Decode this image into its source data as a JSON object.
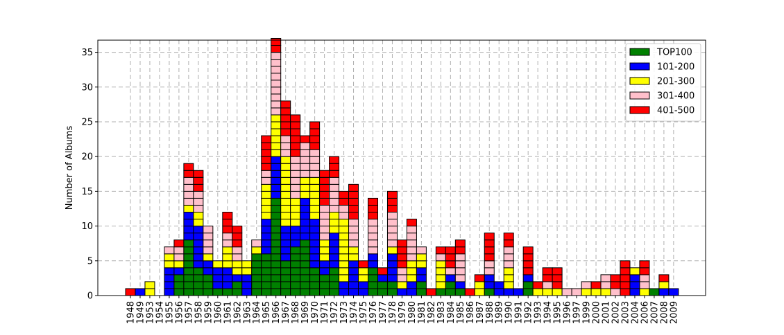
{
  "chart_data": {
    "type": "bar",
    "stacked": true,
    "title": "",
    "xlabel": "",
    "ylabel": "Number of Albums",
    "ylim": [
      0,
      36.75
    ],
    "yticks": [
      0,
      5,
      10,
      15,
      20,
      25,
      30,
      35
    ],
    "grid": true,
    "legend_position": "top-right",
    "unit_blocks": true,
    "categories": [
      "1948",
      "1949",
      "1953",
      "1954",
      "1955",
      "1956",
      "1957",
      "1958",
      "1959",
      "1960",
      "1961",
      "1962",
      "1963",
      "1964",
      "1965",
      "1966",
      "1967",
      "1968",
      "1969",
      "1970",
      "1971",
      "1972",
      "1973",
      "1974",
      "1975",
      "1976",
      "1977",
      "1978",
      "1979",
      "1980",
      "1981",
      "1982",
      "1983",
      "1984",
      "1985",
      "1986",
      "1987",
      "1988",
      "1989",
      "1990",
      "1991",
      "1992",
      "1993",
      "1994",
      "1995",
      "1996",
      "1997",
      "1999",
      "2000",
      "2001",
      "2002",
      "2003",
      "2004",
      "2006",
      "2007",
      "2008",
      "2009"
    ],
    "series": [
      {
        "name": "TOP100",
        "color": "#008000",
        "values": [
          0,
          0,
          0,
          0,
          0,
          3,
          8,
          4,
          3,
          1,
          1,
          2,
          0,
          6,
          6,
          14,
          5,
          7,
          8,
          4,
          3,
          4,
          0,
          0,
          0,
          4,
          2,
          2,
          0,
          0,
          2,
          0,
          1,
          2,
          1,
          0,
          0,
          1,
          0,
          0,
          0,
          2,
          0,
          0,
          0,
          0,
          0,
          0,
          0,
          0,
          0,
          0,
          0,
          0,
          1,
          0,
          0
        ]
      },
      {
        "name": "101-200",
        "color": "#0000ff",
        "values": [
          0,
          1,
          0,
          0,
          4,
          1,
          4,
          6,
          2,
          3,
          3,
          1,
          3,
          0,
          5,
          6,
          5,
          3,
          6,
          7,
          2,
          5,
          2,
          5,
          2,
          2,
          1,
          4,
          1,
          2,
          2,
          0,
          0,
          1,
          1,
          0,
          0,
          2,
          2,
          1,
          1,
          1,
          0,
          0,
          0,
          0,
          0,
          0,
          0,
          0,
          0,
          0,
          3,
          0,
          0,
          1,
          1
        ]
      },
      {
        "name": "201-300",
        "color": "#ffff00",
        "values": [
          0,
          0,
          2,
          0,
          2,
          1,
          1,
          2,
          1,
          1,
          3,
          2,
          2,
          1,
          5,
          6,
          10,
          4,
          3,
          6,
          3,
          3,
          9,
          2,
          2,
          0,
          0,
          1,
          1,
          3,
          2,
          0,
          4,
          0,
          0,
          0,
          2,
          0,
          0,
          3,
          0,
          0,
          1,
          1,
          1,
          0,
          0,
          1,
          1,
          1,
          0,
          0,
          1,
          1,
          0,
          1,
          0
        ]
      },
      {
        "name": "301-400",
        "color": "#ffc0cb",
        "values": [
          0,
          0,
          0,
          0,
          1,
          2,
          4,
          3,
          4,
          0,
          2,
          2,
          0,
          1,
          2,
          9,
          3,
          6,
          5,
          4,
          5,
          5,
          2,
          4,
          0,
          5,
          0,
          5,
          2,
          5,
          1,
          0,
          1,
          1,
          4,
          0,
          0,
          2,
          0,
          3,
          0,
          0,
          0,
          1,
          0,
          1,
          1,
          1,
          0,
          2,
          1,
          0,
          0,
          2,
          0,
          0,
          0
        ]
      },
      {
        "name": "401-500",
        "color": "#ff0000",
        "values": [
          1,
          0,
          0,
          0,
          0,
          1,
          2,
          3,
          0,
          0,
          3,
          3,
          0,
          0,
          5,
          2,
          5,
          6,
          1,
          4,
          5,
          3,
          2,
          5,
          1,
          3,
          1,
          3,
          4,
          1,
          0,
          1,
          1,
          3,
          2,
          1,
          1,
          4,
          0,
          2,
          0,
          4,
          1,
          2,
          3,
          0,
          0,
          0,
          1,
          0,
          2,
          5,
          0,
          2,
          0,
          1,
          0
        ]
      }
    ]
  }
}
